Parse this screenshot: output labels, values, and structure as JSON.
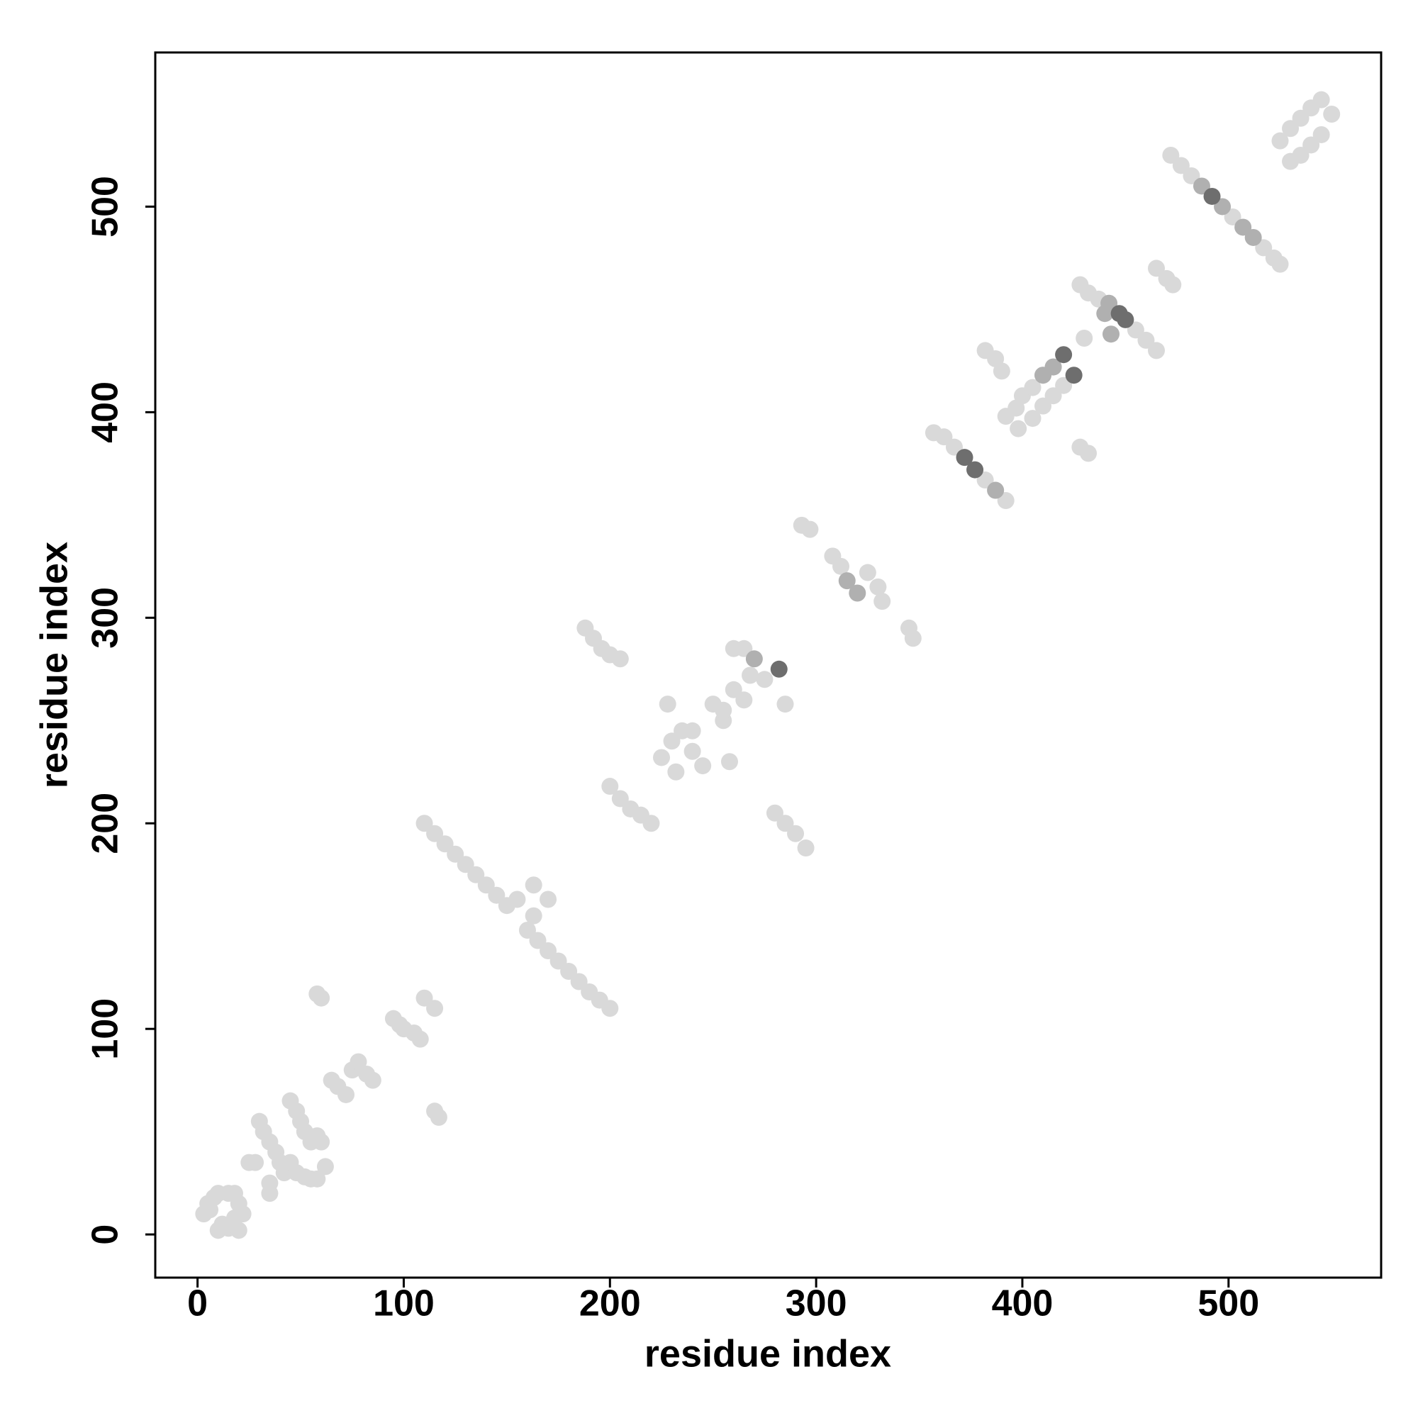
{
  "chart_data": {
    "type": "scatter",
    "xlabel": "residue index",
    "ylabel": "residue index",
    "xlim": [
      -20.5,
      574
    ],
    "ylim": [
      -21,
      575
    ],
    "xticks": [
      0,
      100,
      200,
      300,
      400,
      500
    ],
    "yticks": [
      0,
      100,
      200,
      300,
      400,
      500
    ],
    "series": [
      {
        "color": "#d9d9d9",
        "x": [
          5,
          8,
          10,
          3,
          12,
          15,
          18,
          20,
          10,
          6,
          15,
          20,
          22,
          18,
          30,
          32,
          35,
          38,
          40,
          42,
          45,
          48,
          50,
          52,
          55,
          58,
          60,
          45,
          48,
          52,
          55,
          58,
          28,
          25,
          35,
          35,
          62,
          58,
          60,
          65,
          68,
          72,
          75,
          78,
          82,
          85,
          95,
          98,
          100,
          105,
          108,
          110,
          115,
          115,
          117,
          110,
          115,
          120,
          125,
          130,
          135,
          140,
          145,
          150,
          155,
          163,
          170,
          163,
          160,
          165,
          170,
          175,
          180,
          185,
          190,
          195,
          200,
          188,
          192,
          196,
          200,
          205,
          200,
          205,
          210,
          215,
          220,
          225,
          230,
          235,
          240,
          245,
          250,
          255,
          260,
          265,
          268,
          275,
          285,
          260,
          265,
          228,
          232,
          258,
          255,
          240,
          280,
          285,
          290,
          295,
          293,
          297,
          308,
          312,
          325,
          330,
          332,
          345,
          347,
          357,
          362,
          367,
          382,
          387,
          392,
          382,
          387,
          390,
          392,
          397,
          400,
          405,
          410,
          415,
          398,
          405,
          410,
          415,
          420,
          428,
          432,
          428,
          432,
          437,
          455,
          460,
          465,
          430,
          465,
          470,
          473,
          472,
          477,
          482,
          502,
          517,
          522,
          525,
          525,
          530,
          535,
          540,
          545,
          550,
          545,
          540,
          535,
          530
        ],
        "values": [
          15,
          18,
          20,
          10,
          5,
          3,
          8,
          2,
          2,
          12,
          20,
          15,
          10,
          20,
          55,
          50,
          45,
          40,
          35,
          30,
          65,
          60,
          55,
          50,
          45,
          48,
          45,
          35,
          30,
          28,
          27,
          27,
          35,
          35,
          25,
          20,
          33,
          117,
          115,
          75,
          72,
          68,
          80,
          84,
          78,
          75,
          105,
          102,
          100,
          98,
          95,
          115,
          110,
          60,
          57,
          200,
          195,
          190,
          185,
          180,
          175,
          170,
          165,
          160,
          163,
          170,
          163,
          155,
          148,
          143,
          138,
          133,
          128,
          123,
          118,
          114,
          110,
          295,
          290,
          285,
          282,
          280,
          218,
          212,
          207,
          204,
          200,
          232,
          240,
          245,
          235,
          228,
          258,
          250,
          265,
          260,
          272,
          270,
          258,
          285,
          285,
          258,
          225,
          230,
          255,
          245,
          205,
          200,
          195,
          188,
          345,
          343,
          330,
          325,
          322,
          315,
          308,
          295,
          290,
          390,
          388,
          383,
          367,
          362,
          357,
          430,
          426,
          420,
          398,
          402,
          408,
          412,
          418,
          422,
          392,
          397,
          403,
          408,
          413,
          383,
          380,
          462,
          458,
          455,
          440,
          435,
          430,
          436,
          470,
          465,
          462,
          525,
          520,
          515,
          495,
          480,
          475,
          472,
          532,
          538,
          543,
          548,
          552,
          545,
          535,
          530,
          525,
          522
        ]
      },
      {
        "color": "#b0b0b0",
        "x": [
          270,
          315,
          320,
          387,
          410,
          415,
          442,
          440,
          443,
          487,
          497,
          507,
          512
        ],
        "values": [
          280,
          318,
          312,
          362,
          418,
          422,
          453,
          448,
          438,
          510,
          500,
          490,
          485
        ]
      },
      {
        "color": "#6e6e6e",
        "x": [
          372,
          377,
          420,
          425,
          447,
          450,
          282,
          492
        ],
        "values": [
          378,
          372,
          428,
          418,
          448,
          445,
          275,
          505
        ]
      }
    ]
  }
}
